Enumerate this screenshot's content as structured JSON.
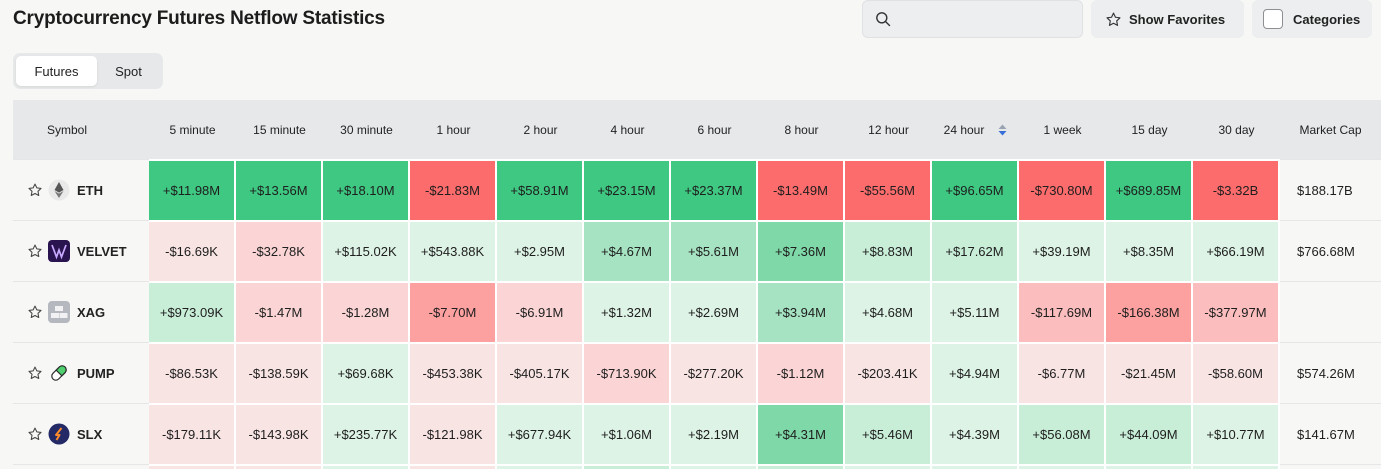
{
  "header": {
    "title": "Cryptocurrency Futures Netflow Statistics",
    "search_placeholder": "",
    "favorites_label": "Show Favorites",
    "categories_label": "Categories"
  },
  "tabs": [
    {
      "label": "Futures",
      "active": true
    },
    {
      "label": "Spot",
      "active": false
    }
  ],
  "table": {
    "columns": [
      "Symbol",
      "5 minute",
      "15 minute",
      "30 minute",
      "1 hour",
      "2 hour",
      "4 hour",
      "6 hour",
      "8 hour",
      "12 hour",
      "24 hour",
      "1 week",
      "15 day",
      "30 day",
      "Market Cap"
    ],
    "sorted_column": "24 hour",
    "rows": [
      {
        "symbol": "ETH",
        "icon": "eth-icon",
        "values": [
          "+$11.98M",
          "+$13.56M",
          "+$18.10M",
          "-$21.83M",
          "+$58.91M",
          "+$23.15M",
          "+$23.37M",
          "-$13.49M",
          "-$55.56M",
          "+$96.65M",
          "-$730.80M",
          "+$689.85M",
          "-$3.32B"
        ],
        "market_cap": "$188.17B"
      },
      {
        "symbol": "VELVET",
        "icon": "velvet-icon",
        "values": [
          "-$16.69K",
          "-$32.78K",
          "+$115.02K",
          "+$543.88K",
          "+$2.95M",
          "+$4.67M",
          "+$5.61M",
          "+$7.36M",
          "+$8.83M",
          "+$17.62M",
          "+$39.19M",
          "+$8.35M",
          "+$66.19M"
        ],
        "market_cap": "$766.68M"
      },
      {
        "symbol": "XAG",
        "icon": "xag-icon",
        "values": [
          "+$973.09K",
          "-$1.47M",
          "-$1.28M",
          "-$7.70M",
          "-$6.91M",
          "+$1.32M",
          "+$2.69M",
          "+$3.94M",
          "+$4.68M",
          "+$5.11M",
          "-$117.69M",
          "-$166.38M",
          "-$377.97M"
        ],
        "market_cap": ""
      },
      {
        "symbol": "PUMP",
        "icon": "pump-icon",
        "values": [
          "-$86.53K",
          "-$138.59K",
          "+$69.68K",
          "-$453.38K",
          "-$405.17K",
          "-$713.90K",
          "-$277.20K",
          "-$1.12M",
          "-$203.41K",
          "+$4.94M",
          "-$6.77M",
          "-$21.45M",
          "-$58.60M"
        ],
        "market_cap": "$574.26M"
      },
      {
        "symbol": "SLX",
        "icon": "slx-icon",
        "values": [
          "-$179.11K",
          "-$143.98K",
          "+$235.77K",
          "-$121.98K",
          "+$677.94K",
          "+$1.06M",
          "+$2.19M",
          "+$4.31M",
          "+$5.46M",
          "+$4.39M",
          "+$56.08M",
          "+$44.09M",
          "+$10.77M"
        ],
        "market_cap": "$141.67M"
      }
    ]
  },
  "colors": {
    "positive_strong": "#3ec882",
    "negative_strong": "#fd6c6c",
    "header_bg": "#e6e8ea",
    "sort_arrow": "#3a6fd8"
  }
}
